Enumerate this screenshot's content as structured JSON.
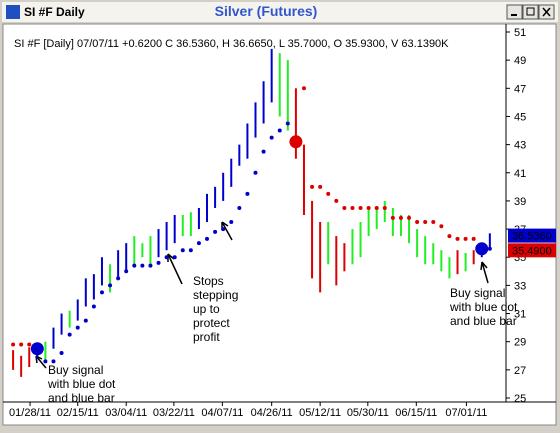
{
  "window": {
    "title": "SI #F Daily"
  },
  "chart_data": {
    "type": "ohlc",
    "title": "Silver (Futures)",
    "header": "SI #F [Daily] 07/07/11  +0.6200 C 36.5360, H 36.6650, L 35.7000, O 35.9300, V 63.1390K",
    "xlim": [
      -1,
      61
    ],
    "ylim": [
      24.716,
      51.284
    ],
    "yticks": [
      25,
      27,
      29,
      31,
      33,
      35,
      37,
      39,
      41,
      43,
      45,
      47,
      49,
      51
    ],
    "xticks": [
      {
        "value": 2.1,
        "label": "01/28/11"
      },
      {
        "value": 8.0,
        "label": "02/15/11"
      },
      {
        "value": 14.0,
        "label": "03/04/11"
      },
      {
        "value": 19.9,
        "label": "03/22/11"
      },
      {
        "value": 25.9,
        "label": "04/07/11"
      },
      {
        "value": 32.0,
        "label": "04/26/11"
      },
      {
        "value": 38.0,
        "label": "05/12/11"
      },
      {
        "value": 43.9,
        "label": "05/30/11"
      },
      {
        "value": 49.9,
        "label": "06/15/11"
      },
      {
        "value": 56.1,
        "label": "07/01/11"
      }
    ],
    "palette": {
      "blue": "#0000cc",
      "green": "#22ee22",
      "red": "#dd0000"
    },
    "bars": {
      "low": [
        27.0,
        26.5,
        27.2,
        27.8,
        27.5,
        28.5,
        29.5,
        30.0,
        30.5,
        31.5,
        32.0,
        33.0,
        32.5,
        33.5,
        34.0,
        34.5,
        35.0,
        34.5,
        35.0,
        35.5,
        36.0,
        36.5,
        36.5,
        37.0,
        37.5,
        38.5,
        39.0,
        40.0,
        41.5,
        42.0,
        43.5,
        44.5,
        46.0,
        45.0,
        44.0,
        42.0,
        38.0,
        33.5,
        32.5,
        34.5,
        33.0,
        34.0,
        34.5,
        35.0,
        36.5,
        37.0,
        37.5,
        36.5,
        36.5,
        36.0,
        35.0,
        34.5,
        34.5,
        34.0,
        33.5,
        33.8,
        34.0,
        34.5,
        35.0,
        35.7
      ],
      "high": [
        28.4,
        28.0,
        28.6,
        28.8,
        29.0,
        30.0,
        31.0,
        31.2,
        32.0,
        33.5,
        33.8,
        35.0,
        34.5,
        35.5,
        36.0,
        36.5,
        36.0,
        36.5,
        37.0,
        37.5,
        38.0,
        38.0,
        38.2,
        38.5,
        39.5,
        40.0,
        41.0,
        42.0,
        43.0,
        44.5,
        46.0,
        47.5,
        49.8,
        49.5,
        49.0,
        47.0,
        43.0,
        39.0,
        37.5,
        37.5,
        36.5,
        36.0,
        37.0,
        37.5,
        38.5,
        38.5,
        39.0,
        38.5,
        38.0,
        38.0,
        37.0,
        36.5,
        36.0,
        35.5,
        35.0,
        35.5,
        35.3,
        35.5,
        36.0,
        36.7
      ],
      "trend": [
        "red",
        "red",
        "red",
        "blue",
        "green",
        "blue",
        "blue",
        "green",
        "blue",
        "blue",
        "blue",
        "blue",
        "green",
        "blue",
        "blue",
        "green",
        "green",
        "green",
        "blue",
        "blue",
        "blue",
        "green",
        "green",
        "blue",
        "blue",
        "blue",
        "blue",
        "blue",
        "blue",
        "blue",
        "blue",
        "blue",
        "blue",
        "green",
        "green",
        "red",
        "red",
        "red",
        "red",
        "green",
        "red",
        "red",
        "green",
        "green",
        "green",
        "green",
        "green",
        "green",
        "green",
        "green",
        "green",
        "green",
        "green",
        "green",
        "green",
        "red",
        "green",
        "red",
        "blue",
        "blue"
      ]
    },
    "stops": {
      "values": [
        28.8,
        28.8,
        28.8,
        28.5,
        27.6,
        27.6,
        28.2,
        29.5,
        30.0,
        30.5,
        31.5,
        32.5,
        33.0,
        33.5,
        34.0,
        34.4,
        34.4,
        34.4,
        34.6,
        35.0,
        35.0,
        35.5,
        35.5,
        36.0,
        36.3,
        36.8,
        37.0,
        37.5,
        38.5,
        39.5,
        41.0,
        42.5,
        43.5,
        44.0,
        44.5,
        43.2,
        47.0,
        40.0,
        40.0,
        39.5,
        39.0,
        38.5,
        38.5,
        38.5,
        38.5,
        38.5,
        38.5,
        37.8,
        37.8,
        37.8,
        37.5,
        37.5,
        37.5,
        37.2,
        36.5,
        36.3,
        36.3,
        36.3,
        35.6,
        35.6
      ],
      "colors": [
        "red",
        "red",
        "red",
        "blue",
        "blue",
        "blue",
        "blue",
        "blue",
        "blue",
        "blue",
        "blue",
        "blue",
        "blue",
        "blue",
        "blue",
        "blue",
        "blue",
        "blue",
        "blue",
        "blue",
        "blue",
        "blue",
        "blue",
        "blue",
        "blue",
        "blue",
        "blue",
        "blue",
        "blue",
        "blue",
        "blue",
        "blue",
        "blue",
        "blue",
        "blue",
        "red",
        "red",
        "red",
        "red",
        "red",
        "red",
        "red",
        "red",
        "red",
        "red",
        "red",
        "red",
        "red",
        "red",
        "red",
        "red",
        "red",
        "red",
        "red",
        "red",
        "red",
        "red",
        "red",
        "blue",
        "blue"
      ]
    },
    "signals": [
      3,
      35,
      58
    ],
    "price_flags": [
      {
        "value": 36.536,
        "label": "36.5360",
        "color": "#0000cc",
        "text_color": "#ffffff"
      },
      {
        "value": 35.49,
        "label": "35.4900",
        "color": "#dd0000",
        "text_color": "#000000"
      }
    ],
    "annotations": [
      {
        "lines": [
          "Buy signal",
          "with blue dot",
          "and blue bar"
        ]
      },
      {
        "lines": [
          "Stops",
          "stepping",
          "up to",
          "protect",
          "profit"
        ]
      },
      {
        "lines": [
          "Buy signal",
          "with blue dot",
          "and blue bar"
        ]
      }
    ]
  }
}
